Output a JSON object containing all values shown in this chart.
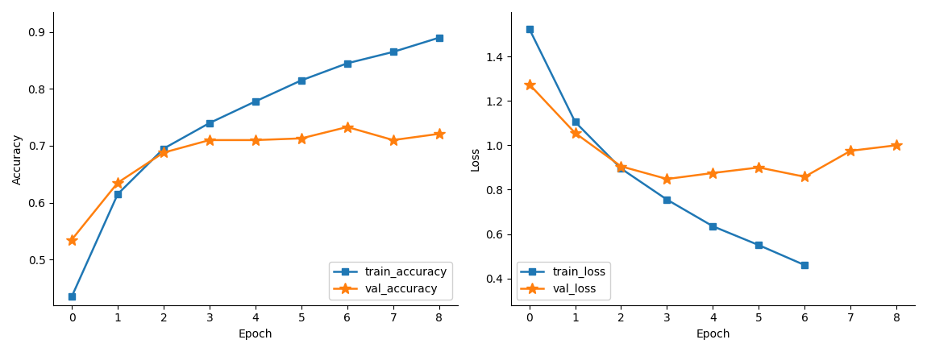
{
  "epochs": [
    0,
    1,
    2,
    3,
    4,
    5,
    6,
    7,
    8
  ],
  "train_accuracy": [
    0.435,
    0.615,
    0.695,
    0.74,
    0.778,
    0.815,
    0.845,
    0.865,
    0.89
  ],
  "val_accuracy": [
    0.535,
    0.635,
    0.688,
    0.71,
    0.71,
    0.713,
    0.733,
    0.71,
    0.721
  ],
  "train_loss_epochs": [
    0,
    1,
    2,
    3,
    4,
    5,
    6
  ],
  "train_loss": [
    1.525,
    1.105,
    0.895,
    0.755,
    0.635,
    0.55,
    0.46
  ],
  "val_loss_epochs": [
    0,
    1,
    2,
    3,
    4,
    5,
    6,
    7,
    8
  ],
  "val_loss": [
    1.275,
    1.055,
    0.905,
    0.848,
    0.875,
    0.9,
    0.858,
    0.975,
    1.0
  ],
  "blue_color": "#1f77b4",
  "orange_color": "#ff7f0e",
  "xlabel": "Epoch",
  "ylabel_acc": "Accuracy",
  "ylabel_loss": "Loss",
  "legend_acc": [
    "train_accuracy",
    "val_accuracy"
  ],
  "legend_loss": [
    "train_loss",
    "val_loss"
  ],
  "acc_ylim": [
    0.42,
    0.935
  ],
  "loss_ylim": [
    0.28,
    1.6
  ],
  "loss_yticks": [
    0.4,
    0.6,
    0.8,
    1.0,
    1.2,
    1.4
  ],
  "acc_yticks": [
    0.5,
    0.6,
    0.7,
    0.8,
    0.9
  ],
  "figsize": [
    11.5,
    4.37
  ],
  "dpi": 100
}
